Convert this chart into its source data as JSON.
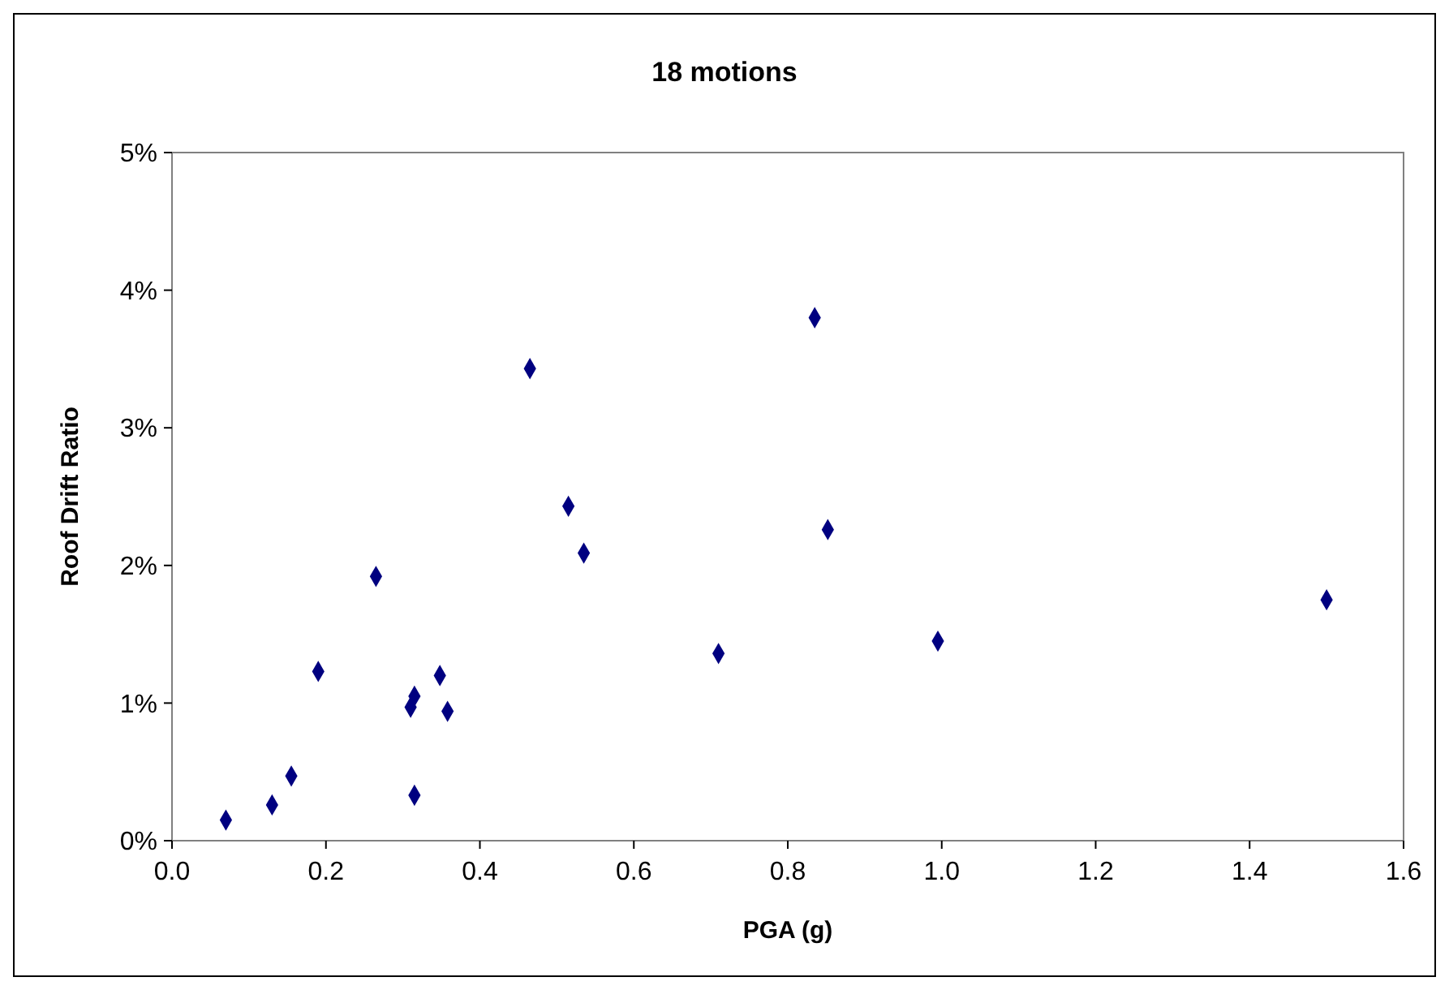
{
  "chart_data": {
    "type": "scatter",
    "title": "18 motions",
    "xlabel": "PGA (g)",
    "ylabel": "Roof Drift Ratio",
    "x": [
      0.07,
      0.13,
      0.155,
      0.19,
      0.265,
      0.31,
      0.315,
      0.315,
      0.348,
      0.358,
      0.465,
      0.515,
      0.535,
      0.71,
      0.835,
      0.852,
      0.995,
      1.5
    ],
    "series": [
      {
        "color": "#000080",
        "values": [
          0.15,
          0.26,
          0.47,
          1.23,
          1.92,
          0.97,
          1.05,
          0.33,
          1.2,
          0.94,
          3.43,
          2.43,
          2.09,
          1.36,
          3.8,
          2.26,
          1.45,
          1.75
        ]
      }
    ],
    "xlim": [
      0,
      1.6
    ],
    "xticks": [
      {
        "value": 0,
        "label": "0.0"
      },
      0.2,
      0.4,
      0.6,
      0.8,
      {
        "value": 1,
        "label": "1.0"
      },
      1.2,
      1.4,
      1.6
    ],
    "ylim": [
      0,
      5
    ],
    "yticks": [
      {
        "value": 0,
        "label": "0%"
      },
      {
        "value": 1,
        "label": "1%"
      },
      {
        "value": 2,
        "label": "2%"
      },
      {
        "value": 3,
        "label": "3%"
      },
      {
        "value": 4,
        "label": "4%"
      },
      {
        "value": 5,
        "label": "5%"
      }
    ],
    "marker": "diamond",
    "grid": false
  }
}
